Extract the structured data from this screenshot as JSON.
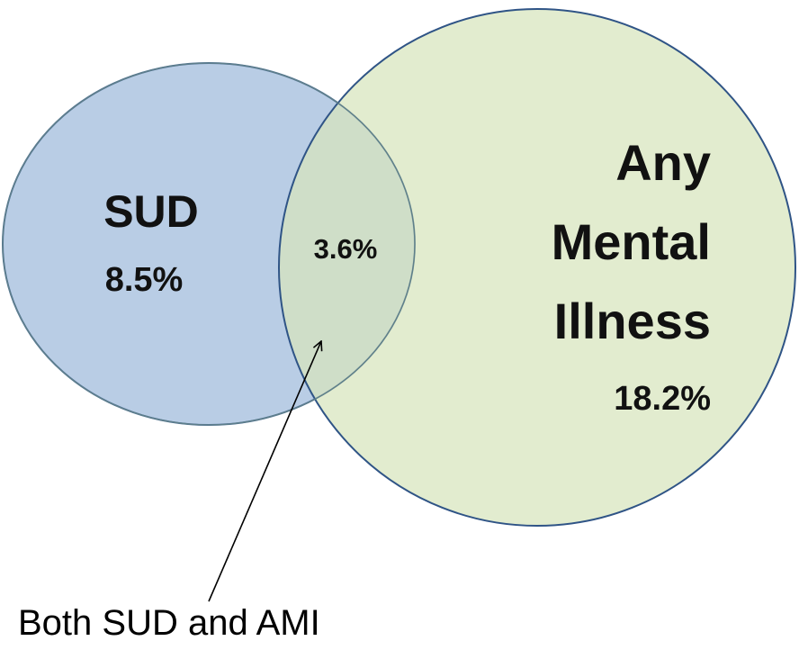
{
  "sets": [
    {
      "label_lines": [
        "SUD"
      ],
      "value": "8.5%"
    },
    {
      "label_lines": [
        "Any",
        "Mental",
        "Illness"
      ],
      "value": "18.2%"
    }
  ],
  "intersection": {
    "value": "3.6%"
  },
  "annotation": "Both SUD and AMI"
}
